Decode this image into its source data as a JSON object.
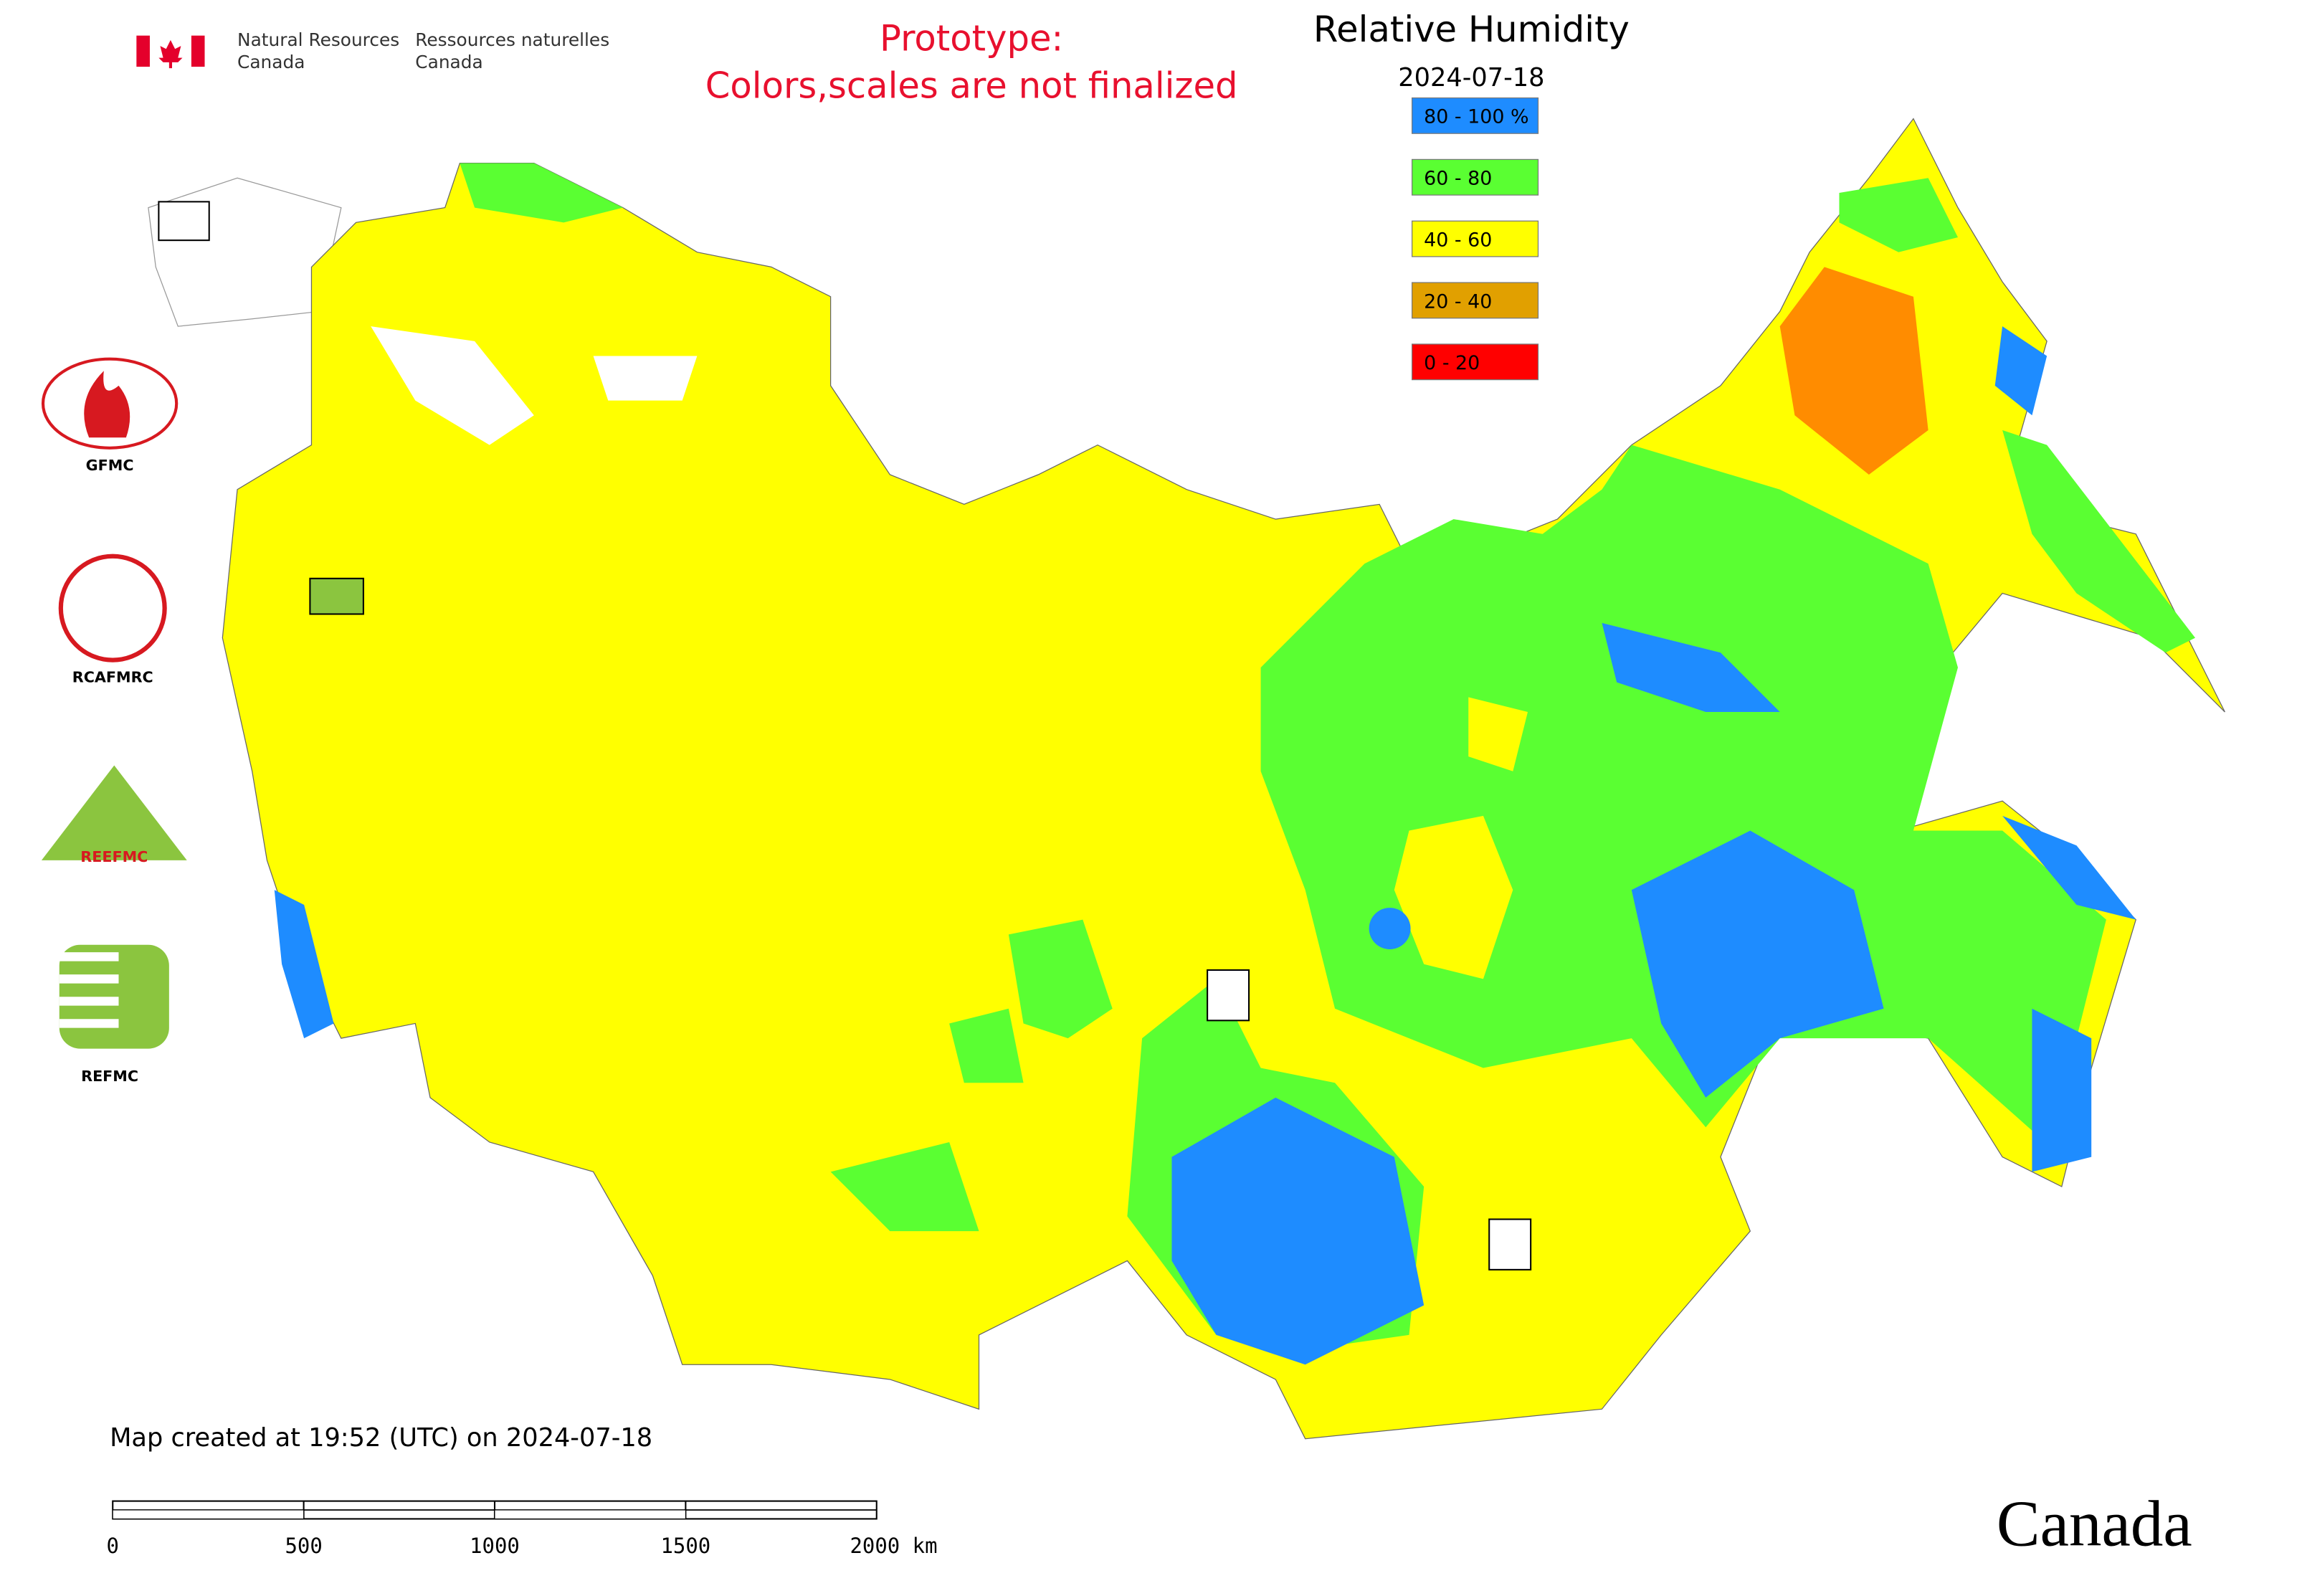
{
  "header": {
    "agency_en_line1": "Natural Resources",
    "agency_en_line2": "Canada",
    "agency_fr_line1": "Ressources naturelles",
    "agency_fr_line2": "Canada",
    "notice_line1": "Prototype:",
    "notice_line2": "Colors,scales are not finalized"
  },
  "map": {
    "title": "Relative Humidity",
    "date": "2024-07-18",
    "legend": [
      {
        "label": "80 - 100 %",
        "color": "#1e8cff"
      },
      {
        "label": "60 - 80",
        "color": "#5aff32"
      },
      {
        "label": "40 - 60",
        "color": "#ffff00"
      },
      {
        "label": "20 - 40",
        "color": "#e1a000"
      },
      {
        "label": "0 - 20",
        "color": "#ff0000"
      }
    ]
  },
  "logos": [
    "GFMC",
    "RCAFMRC",
    "REEFMC",
    "REFMC"
  ],
  "footer": {
    "created": "Map created at 19:52 (UTC) on 2024-07-18",
    "scale_ticks": [
      "0",
      "500",
      "1000",
      "1500",
      "2000 km"
    ],
    "wordmark": "Canada"
  }
}
